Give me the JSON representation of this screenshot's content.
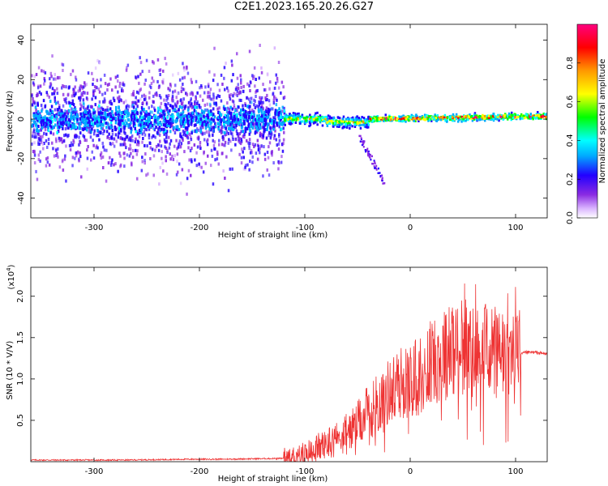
{
  "title": "C2E1.2023.165.20.26.G27",
  "chart_data": [
    {
      "type": "heatmap",
      "xlabel": "Height of straight line (km)",
      "ylabel": "Frequency (Hz)",
      "xlim": [
        -360,
        130
      ],
      "ylim": [
        -50,
        48
      ],
      "xticks": [
        -300,
        -200,
        -100,
        0,
        100
      ],
      "yticks": [
        -40,
        -20,
        0,
        20,
        40
      ],
      "colorbar": {
        "label": "Normalized spectral amplitude",
        "range": [
          0.0,
          1.0
        ],
        "ticks": [
          "0.0",
          "0.2",
          "0.4",
          "0.6",
          "0.8"
        ],
        "tick_values": [
          0.0,
          0.2,
          0.4,
          0.6,
          0.8
        ],
        "colormap": [
          "#ffffff",
          "#d9b3ff",
          "#8a2be2",
          "#2200ff",
          "#00aaff",
          "#00ffff",
          "#00ff00",
          "#ffff00",
          "#ff9900",
          "#ff0000",
          "#ff007f"
        ]
      },
      "regions": [
        {
          "x": [
            -360,
            -120
          ],
          "description_level": "noise",
          "freq_spread_hz": 48,
          "peak_amplitude": 0.3
        },
        {
          "x": [
            -120,
            130
          ],
          "description_level": "signal",
          "freq_center_hz": 0,
          "peak_amplitude": 0.9
        }
      ]
    },
    {
      "type": "line",
      "xlabel": "Height of straight line (km)",
      "ylabel": "SNR (10 * V/V)",
      "y_exponent": "(x10",
      "y_exponent_power": "4",
      "y_exponent_close": ")",
      "xlim": [
        -360,
        130
      ],
      "ylim": [
        0,
        2.35
      ],
      "xticks": [
        -300,
        -200,
        -100,
        0,
        100
      ],
      "yticks": [
        0.5,
        1.0,
        1.5,
        2.0
      ],
      "ytick_labels": [
        "0.5",
        "1.0",
        "1.5",
        "2.0"
      ],
      "color": "#ee3333",
      "series": [
        {
          "x": [
            -360,
            -330,
            -300,
            -270,
            -240,
            -210,
            -180,
            -150,
            -120,
            -110,
            -100,
            -90,
            -80,
            -70,
            -60,
            -50,
            -40,
            -30,
            -20,
            -10,
            0,
            10,
            20,
            30,
            40,
            50,
            60,
            70,
            80,
            90,
            100,
            105,
            110,
            120,
            130
          ],
          "values": [
            0.02,
            0.02,
            0.02,
            0.02,
            0.025,
            0.03,
            0.03,
            0.035,
            0.04,
            0.06,
            0.1,
            0.15,
            0.22,
            0.28,
            0.35,
            0.45,
            0.6,
            0.72,
            0.85,
            0.95,
            0.98,
            1.05,
            1.2,
            1.3,
            1.35,
            1.4,
            1.38,
            1.35,
            1.3,
            1.28,
            1.25,
            1.3,
            1.32,
            1.32,
            1.3
          ]
        }
      ]
    }
  ]
}
